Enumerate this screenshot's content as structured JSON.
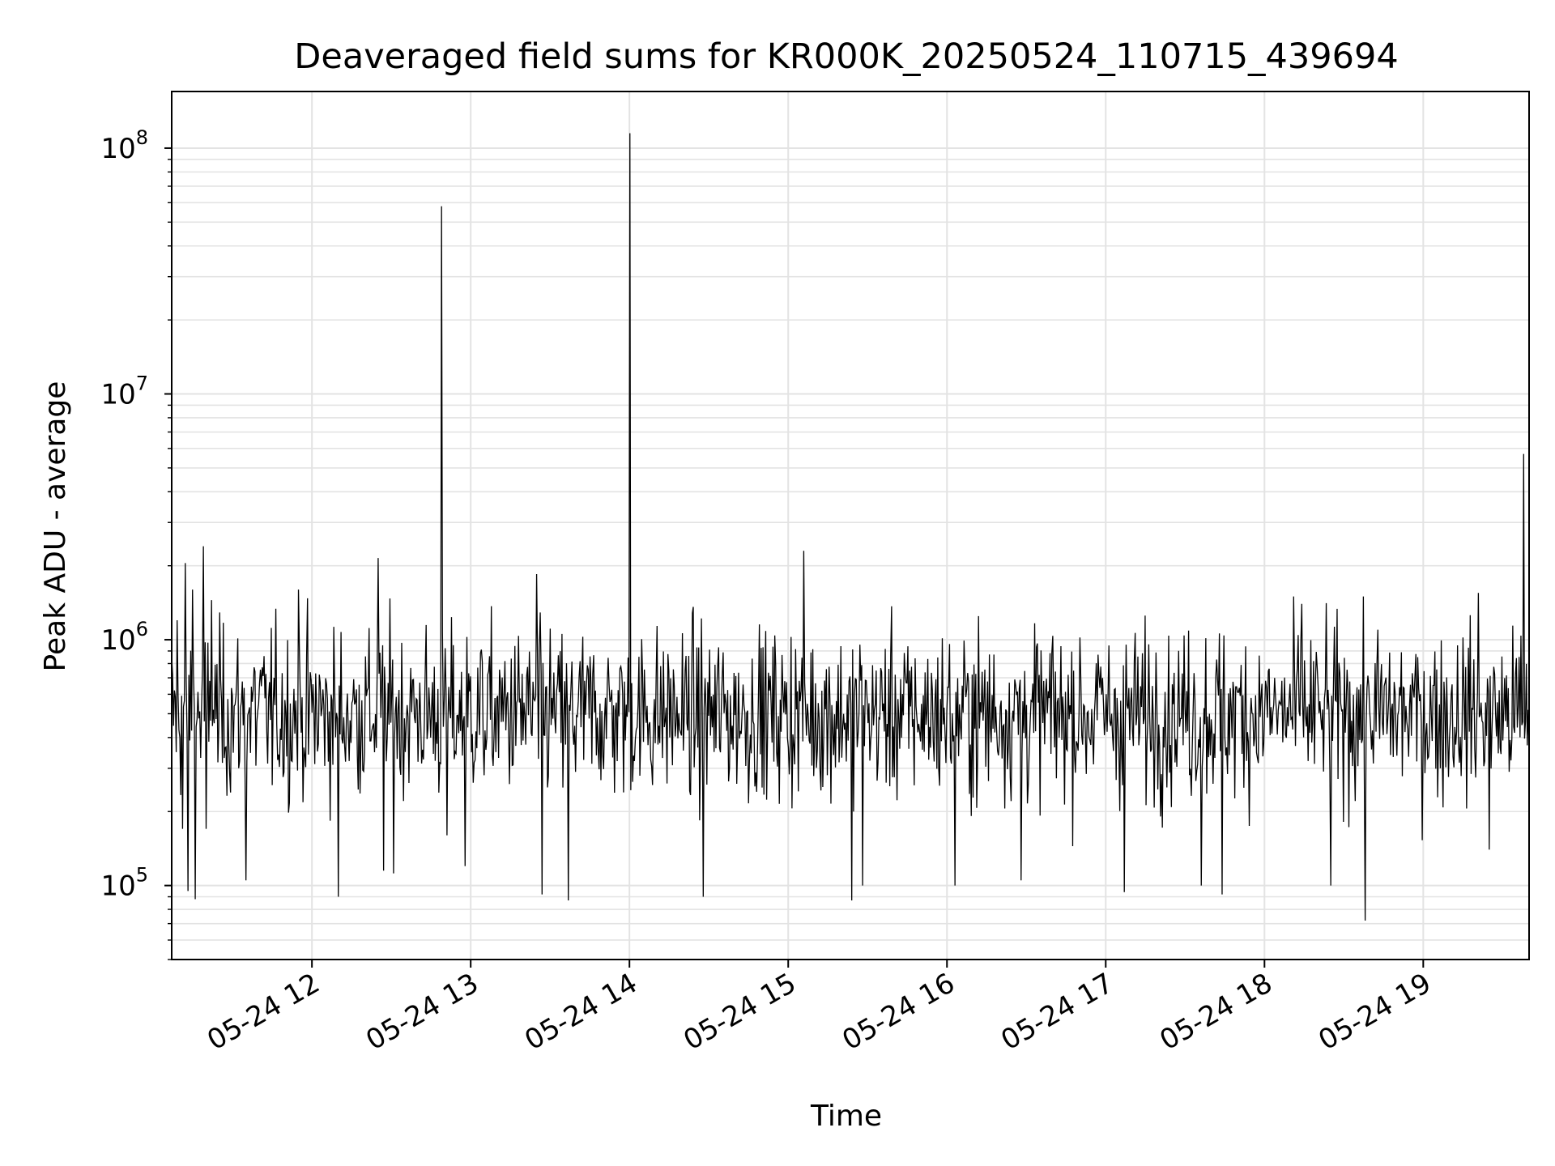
{
  "chart_data": {
    "type": "line",
    "title": "Deaveraged field sums for KR000K_20250524_110715_439694",
    "xlabel": "Time",
    "ylabel": "Peak ADU - average",
    "y_scale": "log",
    "ylim": [
      50000,
      170000000
    ],
    "xlim": [
      "2025-05-24 11:07",
      "2025-05-24 19:40"
    ],
    "grid": true,
    "line_color": "#000000",
    "grid_color": "#e3e3e3",
    "x_ticks": [
      {
        "value": "2025-05-24 12:00",
        "label": "05-24 12"
      },
      {
        "value": "2025-05-24 13:00",
        "label": "05-24 13"
      },
      {
        "value": "2025-05-24 14:00",
        "label": "05-24 14"
      },
      {
        "value": "2025-05-24 15:00",
        "label": "05-24 15"
      },
      {
        "value": "2025-05-24 16:00",
        "label": "05-24 16"
      },
      {
        "value": "2025-05-24 17:00",
        "label": "05-24 17"
      },
      {
        "value": "2025-05-24 18:00",
        "label": "05-24 18"
      },
      {
        "value": "2025-05-24 19:00",
        "label": "05-24 19"
      }
    ],
    "y_ticks": [
      {
        "value": 100000,
        "base": "10",
        "exp": "5"
      },
      {
        "value": 1000000,
        "base": "10",
        "exp": "6"
      },
      {
        "value": 10000000,
        "base": "10",
        "exp": "7"
      },
      {
        "value": 100000000,
        "base": "10",
        "exp": "8"
      }
    ],
    "series": [
      {
        "baseline": 500000,
        "points": [
          {
            "x": "2025-05-24 11:09",
            "y": 1200000
          },
          {
            "x": "2025-05-24 11:11",
            "y": 170000
          },
          {
            "x": "2025-05-24 11:12",
            "y": 2050000
          },
          {
            "x": "2025-05-24 11:13",
            "y": 95000
          },
          {
            "x": "2025-05-24 11:15",
            "y": 1600000
          },
          {
            "x": "2025-05-24 11:16",
            "y": 88000
          },
          {
            "x": "2025-05-24 11:19",
            "y": 2400000
          },
          {
            "x": "2025-05-24 11:20",
            "y": 170000
          },
          {
            "x": "2025-05-24 11:22",
            "y": 1450000
          },
          {
            "x": "2025-05-24 11:35",
            "y": 105000
          },
          {
            "x": "2025-05-24 11:55",
            "y": 1600000
          },
          {
            "x": "2025-05-24 12:10",
            "y": 90000
          },
          {
            "x": "2025-05-24 12:25",
            "y": 2150000
          },
          {
            "x": "2025-05-24 12:27",
            "y": 115000
          },
          {
            "x": "2025-05-24 12:31",
            "y": 112000
          },
          {
            "x": "2025-05-24 12:49",
            "y": 58000000
          },
          {
            "x": "2025-05-24 12:51",
            "y": 160000
          },
          {
            "x": "2025-05-24 12:58",
            "y": 120000
          },
          {
            "x": "2025-05-24 13:25",
            "y": 1850000
          },
          {
            "x": "2025-05-24 13:27",
            "y": 92000
          },
          {
            "x": "2025-05-24 13:37",
            "y": 87000
          },
          {
            "x": "2025-05-24 14:00",
            "y": 115000000
          },
          {
            "x": "2025-05-24 14:28",
            "y": 90000
          },
          {
            "x": "2025-05-24 15:06",
            "y": 2300000
          },
          {
            "x": "2025-05-24 15:24",
            "y": 87000
          },
          {
            "x": "2025-05-24 15:28",
            "y": 100000
          },
          {
            "x": "2025-05-24 16:03",
            "y": 100000
          },
          {
            "x": "2025-05-24 16:28",
            "y": 105000
          },
          {
            "x": "2025-05-24 17:07",
            "y": 94000
          },
          {
            "x": "2025-05-24 17:36",
            "y": 100000
          },
          {
            "x": "2025-05-24 17:44",
            "y": 92000
          },
          {
            "x": "2025-05-24 18:14",
            "y": 1400000
          },
          {
            "x": "2025-05-24 18:25",
            "y": 100000
          },
          {
            "x": "2025-05-24 18:38",
            "y": 72000
          },
          {
            "x": "2025-05-24 19:21",
            "y": 1550000
          },
          {
            "x": "2025-05-24 19:25",
            "y": 140000
          },
          {
            "x": "2025-05-24 19:38",
            "y": 5700000
          }
        ]
      }
    ]
  }
}
